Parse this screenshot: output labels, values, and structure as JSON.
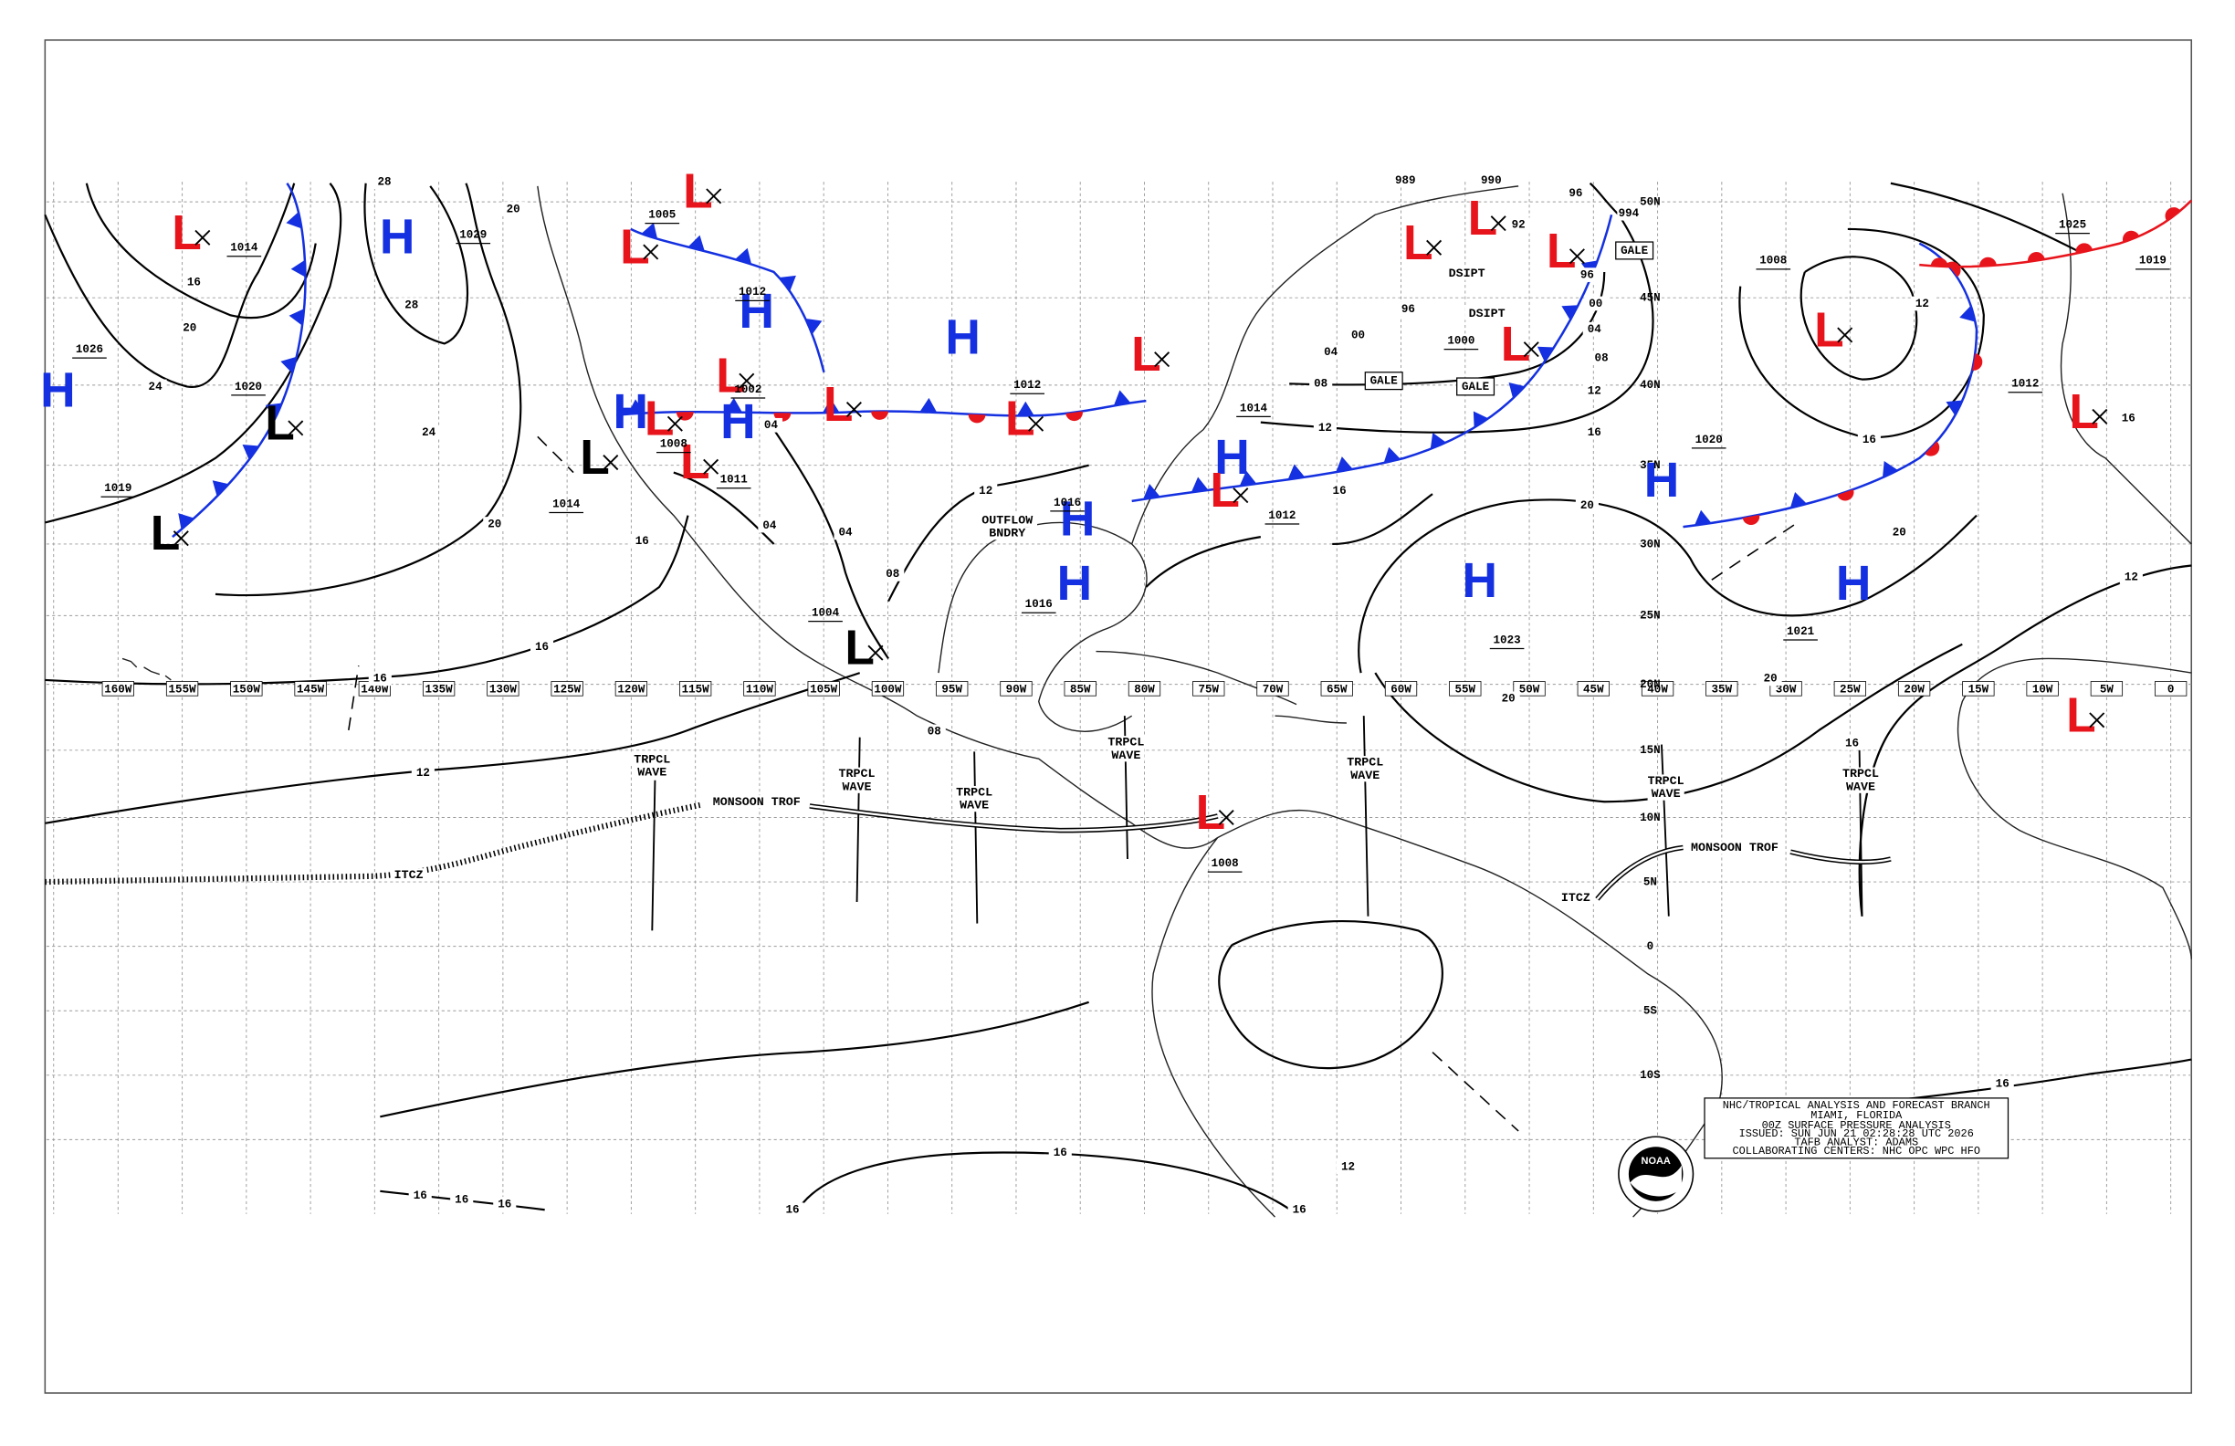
{
  "longitude_labels": [
    "160W",
    "155W",
    "150W",
    "145W",
    "140W",
    "135W",
    "130W",
    "125W",
    "120W",
    "115W",
    "110W",
    "105W",
    "100W",
    "95W",
    "90W",
    "85W",
    "80W",
    "75W",
    "70W",
    "65W",
    "60W",
    "55W",
    "50W",
    "45W",
    "40W",
    "35W",
    "30W",
    "25W",
    "20W",
    "15W",
    "10W",
    "5W",
    "0"
  ],
  "latitude_labels": [
    "50N",
    "45N",
    "40N",
    "35N",
    "30N",
    "25N",
    "20N",
    "15N",
    "10N",
    "5N",
    "0",
    "5S",
    "10S"
  ],
  "centers": [
    {
      "symbol": "H",
      "color": "#1430e0"
    },
    {
      "symbol": "H",
      "color": "#1430e0"
    },
    {
      "symbol": "H",
      "color": "#1430e0"
    },
    {
      "symbol": "H",
      "color": "#1430e0"
    },
    {
      "symbol": "H",
      "color": "#1430e0"
    },
    {
      "symbol": "H",
      "color": "#1430e0"
    },
    {
      "symbol": "H",
      "color": "#1430e0"
    },
    {
      "symbol": "H",
      "color": "#1430e0"
    },
    {
      "symbol": "H",
      "color": "#1430e0"
    },
    {
      "symbol": "H",
      "color": "#1430e0"
    },
    {
      "symbol": "H",
      "color": "#1430e0"
    },
    {
      "symbol": "H",
      "color": "#1430e0"
    },
    {
      "symbol": "L",
      "color": "#e8141c"
    },
    {
      "symbol": "L",
      "color": "#e8141c"
    },
    {
      "symbol": "L",
      "color": "#e8141c"
    },
    {
      "symbol": "L",
      "color": "#e8141c"
    },
    {
      "symbol": "L",
      "color": "#e8141c"
    },
    {
      "symbol": "L",
      "color": "#e8141c"
    },
    {
      "symbol": "L",
      "color": "#e8141c"
    },
    {
      "symbol": "L",
      "color": "#e8141c"
    },
    {
      "symbol": "L",
      "color": "#e8141c"
    },
    {
      "symbol": "L",
      "color": "#e8141c"
    },
    {
      "symbol": "L",
      "color": "#e8141c"
    },
    {
      "symbol": "L",
      "color": "#e8141c"
    },
    {
      "symbol": "L",
      "color": "#e8141c"
    },
    {
      "symbol": "L",
      "color": "#e8141c"
    },
    {
      "symbol": "L",
      "color": "#e8141c"
    },
    {
      "symbol": "L",
      "color": "#e8141c"
    },
    {
      "symbol": "L",
      "color": "#e8141c"
    },
    {
      "symbol": "L",
      "color": "#e8141c"
    },
    {
      "symbol": "L",
      "color": "#000000"
    },
    {
      "symbol": "L",
      "color": "#000000"
    },
    {
      "symbol": "L",
      "color": "#000000"
    },
    {
      "symbol": "L",
      "color": "#000000"
    }
  ],
  "center_pressures": [
    "1014",
    "1020",
    "1026",
    "1019",
    "1029",
    "1014",
    "1004",
    "1016",
    "1016",
    "1012",
    "1014",
    "1012",
    "1000",
    "1023",
    "1021",
    "1020",
    "1008",
    "1025",
    "1019",
    "1012",
    "1008",
    "1012",
    "1002",
    "1011",
    "1008",
    "1005"
  ],
  "isobar_values": [
    "28",
    "28",
    "20",
    "16",
    "20",
    "24",
    "24",
    "20",
    "16",
    "16",
    "16",
    "12",
    "16",
    "16",
    "16",
    "16",
    "16",
    "16",
    "12",
    "16",
    "20",
    "20",
    "20",
    "20",
    "12",
    "12",
    "16",
    "08",
    "04",
    "00",
    "96",
    "96",
    "92",
    "96",
    "989",
    "990",
    "994",
    "12",
    "08",
    "04",
    "00",
    "16",
    "16",
    "12",
    "16",
    "16",
    "04",
    "04",
    "04",
    "08",
    "12",
    "08"
  ],
  "features": [
    [
      "TRPCL",
      "WAVE"
    ],
    [
      "TRPCL",
      "WAVE"
    ],
    [
      "TRPCL",
      "WAVE"
    ],
    [
      "TRPCL",
      "WAVE"
    ],
    [
      "TRPCL",
      "WAVE"
    ],
    [
      "TRPCL",
      "WAVE"
    ],
    [
      "TRPCL",
      "WAVE"
    ],
    [
      "MONSOON TROF"
    ],
    [
      "MONSOON TROF"
    ],
    [
      "ITCZ"
    ],
    [
      "ITCZ"
    ],
    [
      "OUTFLOW",
      "BNDRY"
    ],
    [
      "DSIPT"
    ],
    [
      "DSIPT"
    ]
  ],
  "gale_labels": [
    "GALE",
    "GALE",
    "GALE"
  ],
  "info_box": [
    "NHC/TROPICAL ANALYSIS AND FORECAST BRANCH",
    "MIAMI, FLORIDA",
    "00Z SURFACE PRESSURE ANALYSIS",
    "ISSUED: SUN JUN 21 02:28:28 UTC 2026",
    "TAFB ANALYST: ADAMS",
    "COLLABORATING CENTERS: NHC OPC WPC HFO"
  ],
  "logo": "NOAA"
}
